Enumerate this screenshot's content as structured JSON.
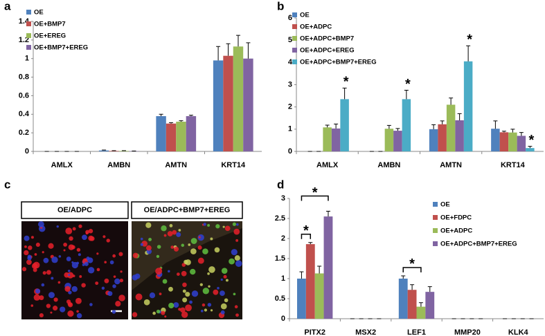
{
  "panel_labels": [
    "a",
    "b",
    "c",
    "d"
  ],
  "images": {
    "titles": [
      "OE/ADPC",
      "OE/ADPC+BMP7+EREG"
    ]
  },
  "chart_data": [
    {
      "type": "bar",
      "categories": [
        "AMLX",
        "AMBN",
        "AMTN",
        "KRT14"
      ],
      "series": [
        {
          "name": "OE",
          "color": "#4f81bd",
          "values": [
            0,
            0.01,
            0.38,
            0.98
          ],
          "errors": [
            0,
            0.005,
            0.02,
            0.15
          ]
        },
        {
          "name": "OE+BMP7",
          "color": "#c0504d",
          "values": [
            0,
            0.005,
            0.3,
            1.03
          ],
          "errors": [
            0,
            0.003,
            0.01,
            0.13
          ]
        },
        {
          "name": "OE+EREG",
          "color": "#9bbb59",
          "values": [
            0,
            0.005,
            0.32,
            1.13
          ],
          "errors": [
            0,
            0.003,
            0.01,
            0.12
          ]
        },
        {
          "name": "OE+BMP7+EREG",
          "color": "#8064a2",
          "values": [
            0,
            0.003,
            0.38,
            1.0
          ],
          "errors": [
            0,
            0.002,
            0.01,
            0.17
          ]
        }
      ],
      "ylim": [
        0,
        1.4
      ],
      "yticks": [
        0,
        0.2,
        0.4,
        0.6,
        0.8,
        1,
        1.2,
        1.4
      ],
      "grid": false,
      "legend": "top-left"
    },
    {
      "type": "bar",
      "categories": [
        "AMLX",
        "AMBN",
        "AMTN",
        "KRT14"
      ],
      "series": [
        {
          "name": "OE",
          "color": "#4f81bd",
          "values": [
            0,
            0,
            1.0,
            1.02
          ],
          "errors": [
            0,
            0,
            0.2,
            0.35
          ]
        },
        {
          "name": "OE+ADPC",
          "color": "#c0504d",
          "values": [
            0,
            0,
            1.22,
            0.86
          ],
          "errors": [
            0,
            0,
            0.15,
            0.05
          ]
        },
        {
          "name": "OE+ADPC+BMP7",
          "color": "#9bbb59",
          "values": [
            1.08,
            1.02,
            2.1,
            0.85
          ],
          "errors": [
            0.1,
            0.15,
            0.3,
            0.15
          ]
        },
        {
          "name": "OE+ADPC+EREG",
          "color": "#8064a2",
          "values": [
            1.03,
            0.93,
            1.4,
            0.7
          ],
          "errors": [
            0.2,
            0.1,
            0.3,
            0.15
          ]
        },
        {
          "name": "OE+ADPC+BMP7+EREG",
          "color": "#4bacc6",
          "values": [
            2.35,
            2.35,
            4.05,
            0.15
          ],
          "errors": [
            0.5,
            0.4,
            0.7,
            0.08
          ]
        }
      ],
      "ylim": [
        0,
        6
      ],
      "yticks": [
        0,
        1,
        2,
        3,
        4,
        5,
        6
      ],
      "grid": false,
      "legend": "top-left",
      "annotations": [
        {
          "text": "*",
          "category": 0,
          "series": [
            4
          ]
        },
        {
          "text": "*",
          "category": 1,
          "series": [
            4
          ]
        },
        {
          "text": "*",
          "category": 2,
          "series": [
            4
          ]
        },
        {
          "text": "*",
          "category": 3,
          "series": [
            4
          ]
        }
      ]
    },
    {
      "type": "bar",
      "categories": [
        "PITX2",
        "MSX2",
        "LEF1",
        "MMP20",
        "KLK4"
      ],
      "series": [
        {
          "name": "OE",
          "color": "#4f81bd",
          "values": [
            1.0,
            0,
            1.0,
            0,
            0
          ],
          "errors": [
            0.17,
            0,
            0.07,
            0,
            0
          ]
        },
        {
          "name": "OE+FDPC",
          "color": "#c0504d",
          "values": [
            1.86,
            0,
            0.72,
            0,
            0
          ],
          "errors": [
            0.04,
            0,
            0.13,
            0,
            0
          ]
        },
        {
          "name": "OE+ADPC",
          "color": "#9bbb59",
          "values": [
            1.13,
            0,
            0.3,
            0,
            0
          ],
          "errors": [
            0.18,
            0,
            0.1,
            0,
            0
          ]
        },
        {
          "name": "OE+ADPC+BMP7+EREG",
          "color": "#8064a2",
          "values": [
            2.55,
            0,
            0.67,
            0,
            0
          ],
          "errors": [
            0.13,
            0,
            0.13,
            0,
            0
          ]
        }
      ],
      "ylim": [
        0,
        3
      ],
      "yticks": [
        0,
        0.5,
        1,
        1.5,
        2,
        2.5,
        3
      ],
      "grid": false,
      "legend": "top-right",
      "annotations": [
        {
          "text": "*",
          "category": 0,
          "series": [
            0,
            1
          ]
        },
        {
          "text": "*",
          "category": 0,
          "series": [
            0,
            3
          ]
        },
        {
          "text": "*",
          "category": 2,
          "series": [
            0,
            2
          ]
        }
      ]
    }
  ]
}
